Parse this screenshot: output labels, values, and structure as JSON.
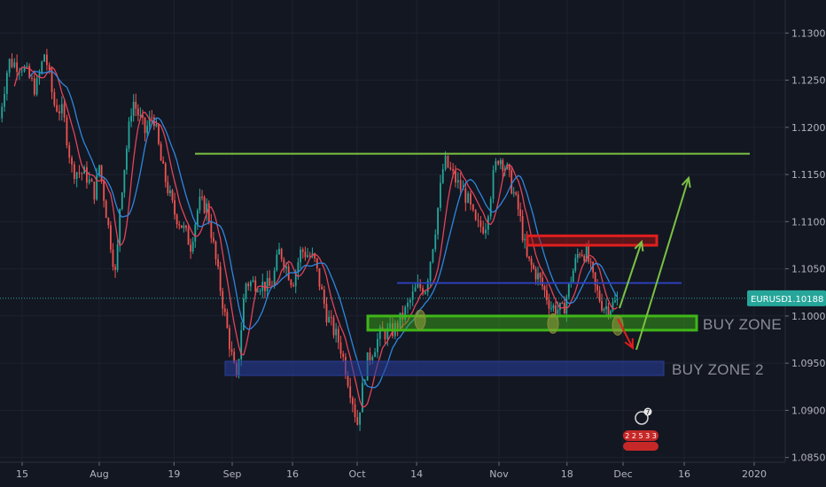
{
  "chart_data": {
    "type": "candlestick",
    "symbol": "EURUSD",
    "last_price": "1.10188",
    "y_ticks": [
      "1.13000",
      "1.12500",
      "1.12000",
      "1.11500",
      "1.11000",
      "1.10500",
      "1.10000",
      "1.09500",
      "1.09000",
      "1.08500"
    ],
    "y_tick_values": [
      1.13,
      1.125,
      1.12,
      1.115,
      1.11,
      1.105,
      1.1,
      1.095,
      1.09,
      1.085
    ],
    "x_ticks": [
      "15",
      "Aug",
      "19",
      "Sep",
      "16",
      "Oct",
      "14",
      "Nov",
      "18",
      "Dec",
      "16",
      "2020"
    ],
    "ylim": [
      1.0845,
      1.1335
    ],
    "grid": true,
    "price_path": [
      {
        "t": "Jul 10",
        "v": 1.121
      },
      {
        "t": "Jul 12",
        "v": 1.127
      },
      {
        "t": "Jul 15",
        "v": 1.1265
      },
      {
        "t": "Jul 18",
        "v": 1.124
      },
      {
        "t": "Jul 20",
        "v": 1.128
      },
      {
        "t": "Jul 22",
        "v": 1.1225
      },
      {
        "t": "Jul 24",
        "v": 1.1215
      },
      {
        "t": "Jul 26",
        "v": 1.1155
      },
      {
        "t": "Jul 29",
        "v": 1.115
      },
      {
        "t": "Jul 31",
        "v": 1.113
      },
      {
        "t": "Aug 1",
        "v": 1.116
      },
      {
        "t": "Aug 3",
        "v": 1.11
      },
      {
        "t": "Aug 5",
        "v": 1.104
      },
      {
        "t": "Aug 6",
        "v": 1.112
      },
      {
        "t": "Aug 9",
        "v": 1.123
      },
      {
        "t": "Aug 12",
        "v": 1.1195
      },
      {
        "t": "Aug 14",
        "v": 1.1215
      },
      {
        "t": "Aug 16",
        "v": 1.116
      },
      {
        "t": "Aug 19",
        "v": 1.111
      },
      {
        "t": "Aug 21",
        "v": 1.1095
      },
      {
        "t": "Aug 23",
        "v": 1.1075
      },
      {
        "t": "Aug 25",
        "v": 1.112
      },
      {
        "t": "Aug 27",
        "v": 1.1115
      },
      {
        "t": "Aug 29",
        "v": 1.106
      },
      {
        "t": "Sep 1",
        "v": 1.098
      },
      {
        "t": "Sep 3",
        "v": 1.093
      },
      {
        "t": "Sep 5",
        "v": 1.1035
      },
      {
        "t": "Sep 8",
        "v": 1.1035
      },
      {
        "t": "Sep 11",
        "v": 1.103
      },
      {
        "t": "Sep 13",
        "v": 1.107
      },
      {
        "t": "Sep 16",
        "v": 1.1035
      },
      {
        "t": "Sep 18",
        "v": 1.107
      },
      {
        "t": "Sep 21",
        "v": 1.106
      },
      {
        "t": "Sep 24",
        "v": 1.1
      },
      {
        "t": "Sep 27",
        "v": 1.097
      },
      {
        "t": "Sep 30",
        "v": 1.091
      },
      {
        "t": "Oct 1",
        "v": 1.0885
      },
      {
        "t": "Oct 3",
        "v": 1.095
      },
      {
        "t": "Oct 6",
        "v": 1.098
      },
      {
        "t": "Oct 9",
        "v": 1.0985
      },
      {
        "t": "Oct 11",
        "v": 1.1
      },
      {
        "t": "Oct 14",
        "v": 1.103
      },
      {
        "t": "Oct 16",
        "v": 1.103
      },
      {
        "t": "Oct 18",
        "v": 1.109
      },
      {
        "t": "Oct 20",
        "v": 1.1165
      },
      {
        "t": "Oct 23",
        "v": 1.114
      },
      {
        "t": "Oct 25",
        "v": 1.1125
      },
      {
        "t": "Oct 27",
        "v": 1.1095
      },
      {
        "t": "Oct 29",
        "v": 1.1095
      },
      {
        "t": "Oct 31",
        "v": 1.1155
      },
      {
        "t": "Nov 1",
        "v": 1.117
      },
      {
        "t": "Nov 3",
        "v": 1.1155
      },
      {
        "t": "Nov 6",
        "v": 1.111
      },
      {
        "t": "Nov 8",
        "v": 1.106
      },
      {
        "t": "Nov 11",
        "v": 1.104
      },
      {
        "t": "Nov 14",
        "v": 1.101
      },
      {
        "t": "Nov 17",
        "v": 1.1005
      },
      {
        "t": "Nov 19",
        "v": 1.104
      },
      {
        "t": "Nov 21",
        "v": 1.107
      },
      {
        "t": "Nov 23",
        "v": 1.1065
      },
      {
        "t": "Nov 25",
        "v": 1.103
      },
      {
        "t": "Nov 27",
        "v": 1.101
      },
      {
        "t": "Nov 29",
        "v": 1.101
      },
      {
        "t": "Dec 1",
        "v": 1.1018
      }
    ],
    "annotations": {
      "resistance_line": 1.1172,
      "mid_line": 1.1035,
      "sell_zone": [
        1.1075,
        1.1085
      ],
      "buy_zone_1": {
        "label": "BUY ZONE 1",
        "range": [
          1.0985,
          1.1
        ]
      },
      "buy_zone_2": {
        "label": "BUY ZONE 2",
        "range": [
          1.0937,
          1.0952
        ]
      }
    }
  },
  "overlay": {
    "badge_top": "7",
    "badge_bottom": "2 2 5 3 3"
  },
  "colors": {
    "background": "#131722",
    "candle_up": "#26a69a",
    "candle_down": "#ef5350",
    "resistance": "#7bc143",
    "buy_zone": "#3fb618",
    "buy_zone_2": "#2a3f9a",
    "sell_zone": "#e01f1f",
    "mid_line": "#2b3fb8",
    "price_line": "#26a69a"
  }
}
